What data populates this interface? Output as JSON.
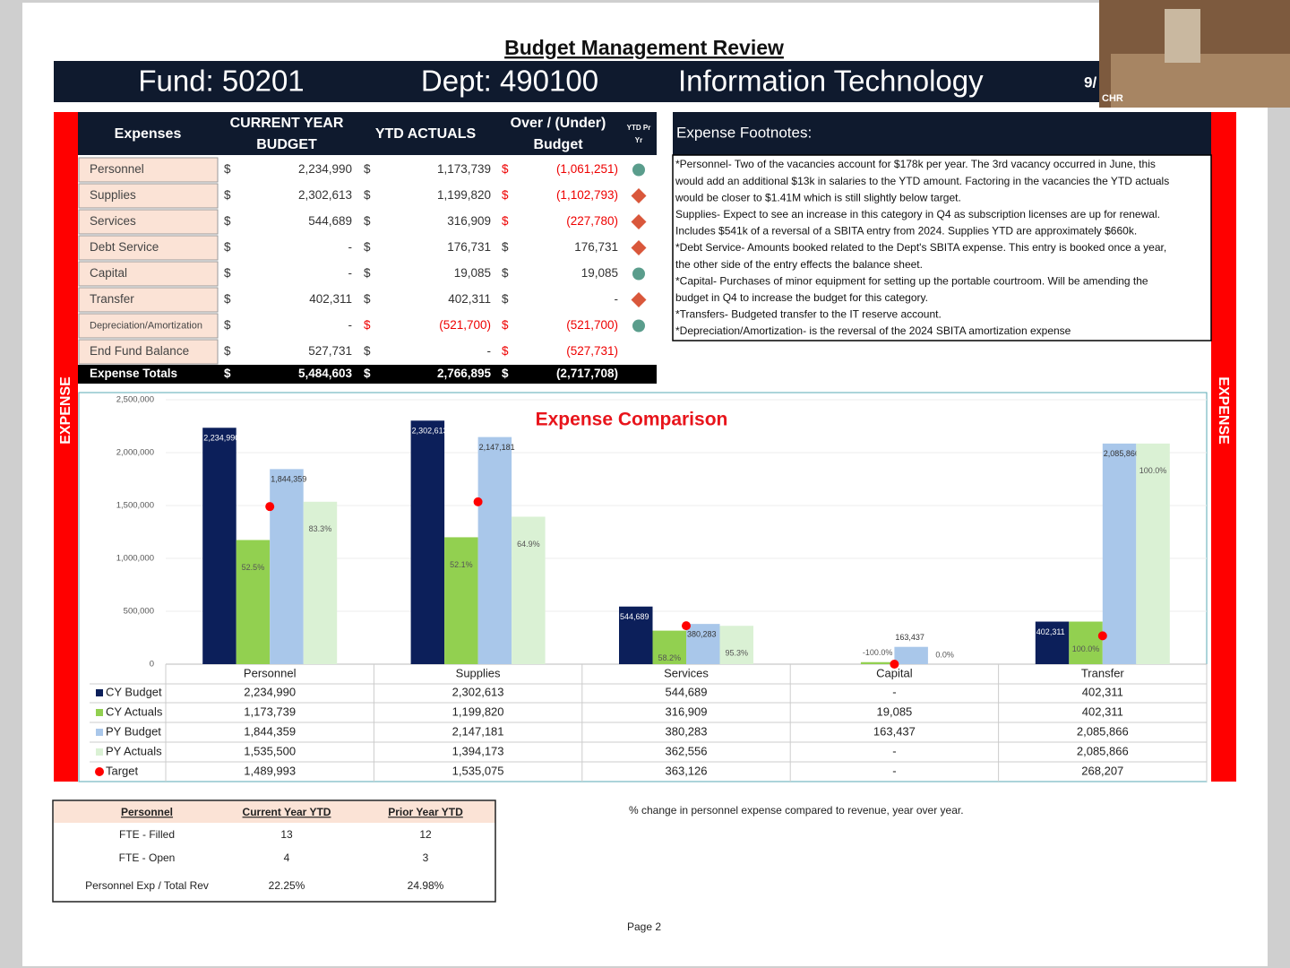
{
  "header": {
    "title": "Budget Management Review",
    "fund": "Fund: 50201",
    "dept": "Dept: 490100",
    "name": "Information Technology",
    "date": "9/"
  },
  "video": {
    "label": "CHR"
  },
  "side_label": "EXPENSE",
  "expenses_table": {
    "columns": [
      [
        "Expenses"
      ],
      [
        "CURRENT YEAR",
        "BUDGET"
      ],
      [
        "YTD ACTUALS"
      ],
      [
        "Over / (Under)",
        "Budget"
      ],
      [
        "YTD Pr",
        "Yr"
      ]
    ],
    "currency": "$",
    "rows": [
      {
        "label": "Personnel",
        "budget": "2,234,990",
        "ytd": "1,173,739",
        "over": "(1,061,251)",
        "indicator_color": "#5a9d8c"
      },
      {
        "label": "Supplies",
        "budget": "2,302,613",
        "ytd": "1,199,820",
        "over": "(1,102,793)",
        "indicator_color": "#d9573b"
      },
      {
        "label": "Services",
        "budget": "544,689",
        "ytd": "316,909",
        "over": "(227,780)",
        "indicator_color": "#d9573b"
      },
      {
        "label": "Debt Service",
        "budget": "-",
        "ytd": "176,731",
        "over": "176,731",
        "indicator_color": "#d9573b"
      },
      {
        "label": "Capital",
        "budget": "-",
        "ytd": "19,085",
        "over": "19,085",
        "indicator_color": "#5a9d8c"
      },
      {
        "label": "Transfer",
        "budget": "402,311",
        "ytd": "402,311",
        "over": "-",
        "indicator_color": "#d9573b"
      },
      {
        "label": "Depreciation/Amortization",
        "budget": "-",
        "ytd": "(521,700)",
        "over": "(521,700)",
        "indicator_color": "#5a9d8c"
      },
      {
        "label": "End Fund Balance",
        "budget": "527,731",
        "ytd": "-",
        "over": "(527,731)"
      }
    ],
    "totals": {
      "label": "Expense Totals",
      "budget": "5,484,603",
      "ytd": "2,766,895",
      "over": "(2,717,708)"
    }
  },
  "footnotes": {
    "title": "Expense Footnotes:",
    "lines": [
      "*Personnel- Two of the vacancies account for $178k per year. The 3rd vacancy occurred in June, this",
      "would add an additional $13k in salaries to the YTD amount. Factoring in the vacancies the YTD actuals",
      "would be closer to $1.41M which is still slightly below target.",
      "Supplies- Expect to see an increase in this category in Q4 as subscription licenses are up for renewal.",
      "Includes $541k of a reversal of a SBITA entry from 2024. Supplies YTD are approximately $660k.",
      "*Debt Service- Amounts booked related to the Dept's SBITA  expense. This entry is booked once a year,",
      "the other side of the entry effects the balance sheet.",
      "*Capital- Purchases of minor equipment for setting up the portable courtroom. Will be amending the",
      "budget in Q4 to increase the budget for this category.",
      "*Transfers- Budgeted transfer to the IT reserve account.",
      "*Depreciation/Amortization- is the reversal of the 2024 SBITA amortization expense"
    ]
  },
  "chart_data": {
    "type": "bar",
    "title": "Expense Comparison",
    "categories": [
      "Personnel",
      "Supplies",
      "Services",
      "Capital",
      "Transfer"
    ],
    "ylim": [
      0,
      2500000
    ],
    "yticks": [
      0,
      {
        "value": 500000,
        "label": "500,000"
      },
      {
        "value": 1000000,
        "label": "1,000,000"
      },
      {
        "value": 1500000,
        "label": "1,500,000"
      },
      {
        "value": 2000000,
        "label": "2,000,000"
      },
      {
        "value": 2500000,
        "label": "2,500,000"
      }
    ],
    "grid": true,
    "series": [
      {
        "name": "CY Budget",
        "color": "#0c1f5a",
        "values": [
          2234990,
          2302613,
          544689,
          0,
          402311
        ],
        "value_labels": [
          "2,234,990",
          "2,302,613",
          "544,689",
          "-",
          "402,311"
        ]
      },
      {
        "name": "CY Actuals",
        "color": "#92d050",
        "values": [
          1173739,
          1199820,
          316909,
          19085,
          402311
        ],
        "value_labels": [
          "1,173,739",
          "1,199,820",
          "316,909",
          "19,085",
          "402,311"
        ],
        "percent_labels": [
          "52.5%",
          "52.1%",
          "58.2%",
          "-100.0%",
          "100.0%"
        ]
      },
      {
        "name": "PY Budget",
        "color": "#a9c7ea",
        "values": [
          1844359,
          2147181,
          380283,
          163437,
          2085866
        ],
        "value_labels": [
          "1,844,359",
          "2,147,181",
          "380,283",
          "163,437",
          "2,085,866"
        ]
      },
      {
        "name": "PY Actuals",
        "color": "#daf1d4",
        "values": [
          1535500,
          1394173,
          362556,
          0,
          2085866
        ],
        "value_labels": [
          "1,535,500",
          "1,394,173",
          "362,556",
          "-",
          "2,085,866"
        ],
        "percent_labels": [
          "83.3%",
          "64.9%",
          "95.3%",
          "0.0%",
          "100.0%"
        ]
      },
      {
        "name": "Target",
        "type": "scatter",
        "color": "#ff0000",
        "values": [
          1489993,
          1535075,
          363126,
          0,
          268207
        ],
        "value_labels": [
          "1,489,993",
          "1,535,075",
          "363,126",
          "-",
          "268,207"
        ]
      }
    ]
  },
  "personnel_table": {
    "columns": [
      "Personnel",
      "Current Year YTD",
      "Prior Year YTD"
    ],
    "rows": [
      [
        "FTE - Filled",
        "13",
        "12"
      ],
      [
        "FTE - Open",
        "4",
        "3"
      ],
      [
        "Personnel Exp / Total Rev",
        "22.25%",
        "24.98%"
      ]
    ]
  },
  "note": "% change in personnel expense compared to revenue, year over year.",
  "page": "Page 2"
}
